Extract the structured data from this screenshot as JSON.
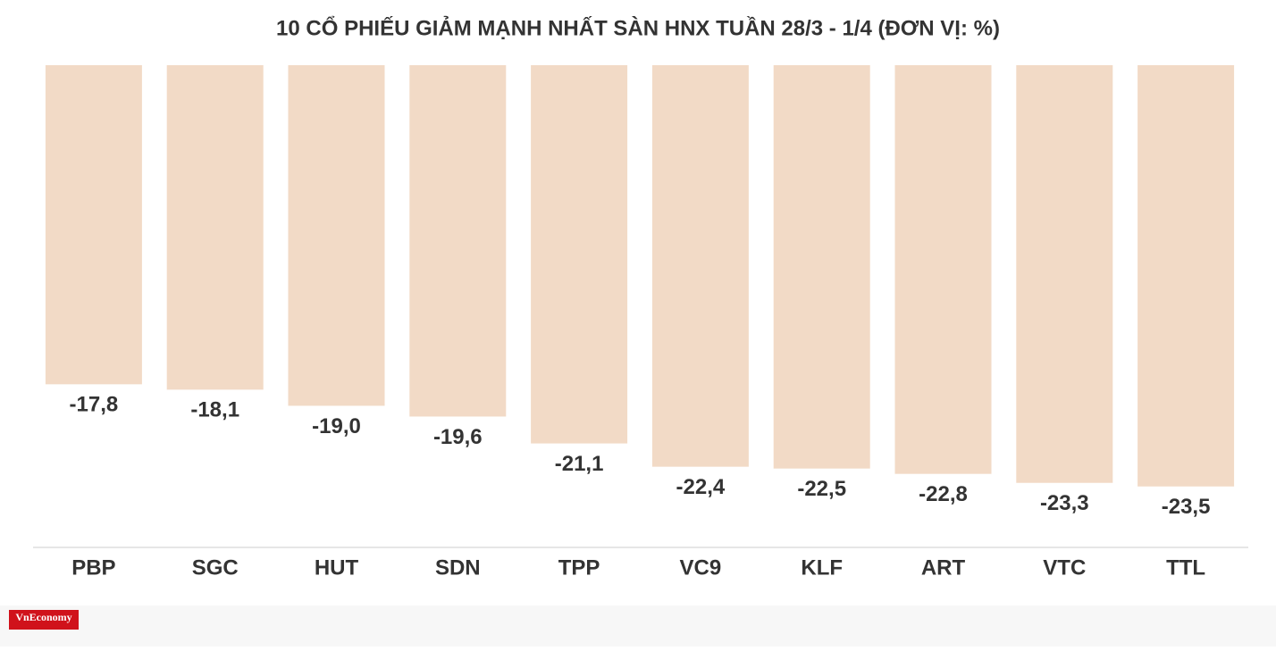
{
  "chart_data": {
    "type": "bar",
    "title": "10 CỔ PHIẾU GIẢM MẠNH NHẤT SÀN HNX TUẦN 28/3 - 1/4 (ĐƠN VỊ: %)",
    "categories": [
      "PBP",
      "SGC",
      "HUT",
      "SDN",
      "TPP",
      "VC9",
      "KLF",
      "ART",
      "VTC",
      "TTL"
    ],
    "values": [
      -17.8,
      -18.1,
      -19.0,
      -19.6,
      -21.1,
      -22.4,
      -22.5,
      -22.8,
      -23.3,
      -23.5
    ],
    "value_labels": [
      "-17,8",
      "-18,1",
      "-19,0",
      "-19,6",
      "-21,1",
      "-22,4",
      "-22,5",
      "-22,8",
      "-23,3",
      "-23,5"
    ],
    "color": "#f2dac6",
    "ylim": [
      -26.9,
      0
    ]
  },
  "logo": "VnEconomy"
}
